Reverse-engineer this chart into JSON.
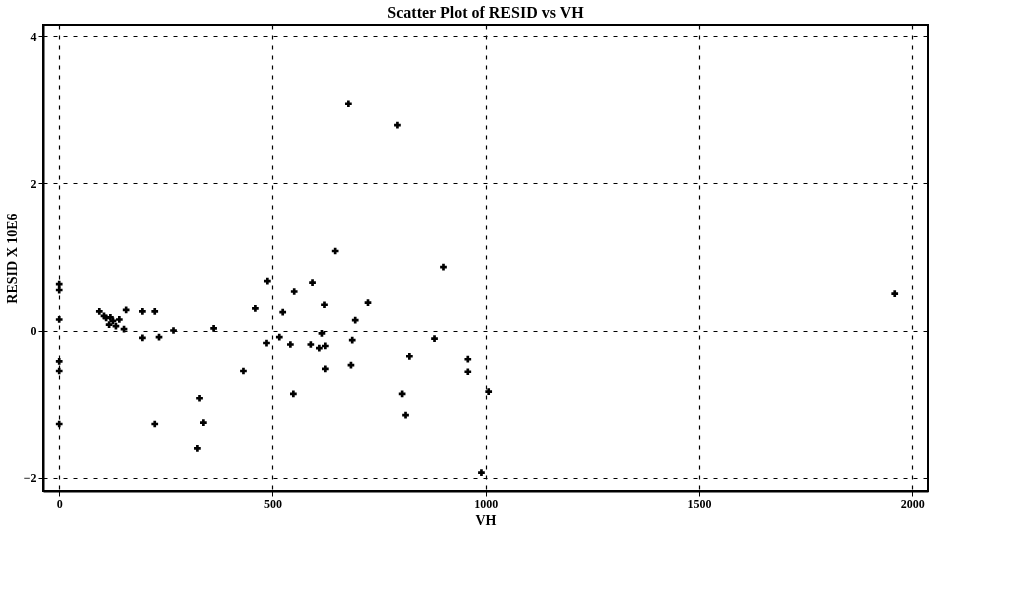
{
  "chart_data": {
    "type": "scatter",
    "title": "Scatter Plot of RESID vs VH",
    "xlabel": "VH",
    "ylabel": "RESID X 10E6",
    "xlim": [
      -38,
      2037
    ],
    "ylim": [
      -2.18,
      4.15
    ],
    "xticks": [
      0,
      500,
      1000,
      1500,
      2000
    ],
    "yticks": [
      -2,
      0,
      2,
      4
    ],
    "grid": true,
    "marker": "cross",
    "series": [
      {
        "color": "#000000",
        "x": [
          0,
          0,
          0,
          0,
          0,
          0,
          94,
          157,
          105,
          110,
          126,
          141,
          117,
          133,
          152,
          120,
          195,
          224,
          195,
          234,
          268,
          362,
          224,
          329,
          338,
          324,
          432,
          488,
          460,
          551,
          524,
          594,
          622,
          724,
          694,
          901,
          516,
          486,
          542,
          590,
          610,
          624,
          616,
          687,
          684,
          624,
          549,
          880,
          821,
          958,
          958,
          804,
          812,
          1007,
          990,
          678,
          793,
          647,
          1959
        ],
        "values": [
          0.63,
          0.55,
          0.15,
          -0.42,
          -0.55,
          -1.27,
          0.26,
          0.28,
          0.2,
          0.17,
          0.13,
          0.15,
          0.08,
          0.06,
          0.02,
          0.18,
          0.26,
          0.26,
          -0.1,
          -0.09,
          0.0,
          0.03,
          -1.27,
          -0.92,
          -1.25,
          -1.6,
          -0.55,
          0.67,
          0.3,
          0.53,
          0.25,
          0.65,
          0.35,
          0.38,
          0.14,
          0.86,
          -0.09,
          -0.17,
          -0.19,
          -0.19,
          -0.24,
          -0.21,
          -0.04,
          -0.13,
          -0.47,
          -0.52,
          -0.86,
          -0.11,
          -0.35,
          -0.39,
          -0.56,
          -0.86,
          -1.15,
          -0.83,
          -1.93,
          3.08,
          2.79,
          1.08,
          0.5
        ]
      }
    ]
  }
}
